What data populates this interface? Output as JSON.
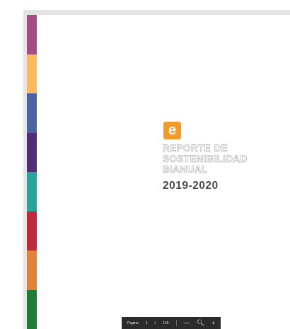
{
  "document": {
    "stripe_colors": [
      "#a34f84",
      "#fbb960",
      "#4b63a3",
      "#512c78",
      "#2aa39a",
      "#c1283d",
      "#e0823b",
      "#1e7c36"
    ],
    "logo": {
      "letter": "e",
      "color": "#f29a2e"
    },
    "title_lines": [
      "REPORTE DE",
      "SOSTENIBILIDAD",
      "BIANUAL"
    ],
    "year": "2019-2020"
  },
  "viewer_toolbar": {
    "page_label": "Pagina",
    "current_page": "1",
    "separator": "/",
    "total_pages": "146",
    "zoom_out_icon": "minus-icon",
    "zoom_icon": "zoom-icon",
    "zoom_in_icon": "plus-icon"
  }
}
